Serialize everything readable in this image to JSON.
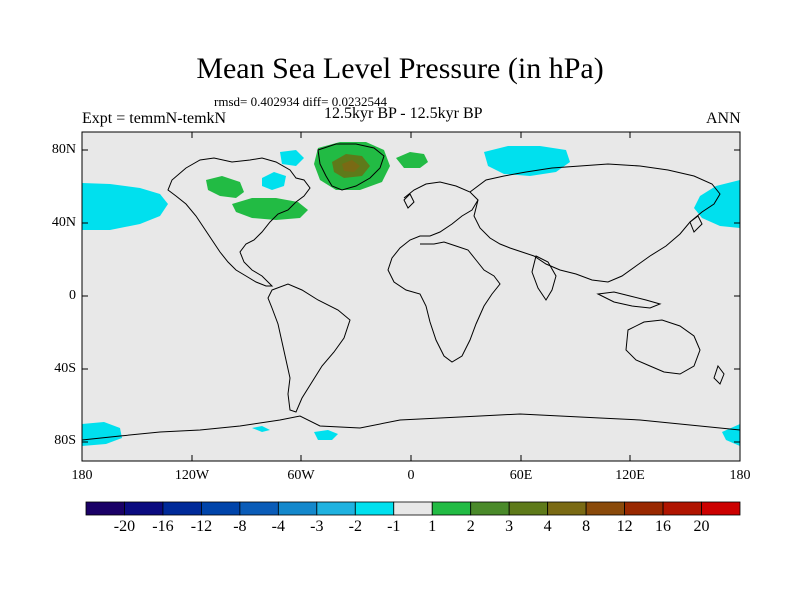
{
  "title": "Mean Sea Level Pressure (in hPa)",
  "stats_line": "rmsd= 0.402934 diff= 0.0232544",
  "experiment": "Expt = temmN-temkN",
  "period": "12.5kyr BP - 12.5kyr BP",
  "season": "ANN",
  "map": {
    "lat_ticks": [
      "80N",
      "40N",
      "0",
      "40S",
      "80S"
    ],
    "lon_ticks": [
      "180",
      "120W",
      "60W",
      "0",
      "60E",
      "120E",
      "180"
    ],
    "background_color": "#e8e8e8",
    "coast_color": "#000000"
  },
  "colorbar": {
    "colors": [
      "#1a0066",
      "#0b0b80",
      "#002a99",
      "#0044aa",
      "#0a5cb8",
      "#1488cc",
      "#1fb2e0",
      "#00e0ee",
      "#e8e8e8",
      "#22bb44",
      "#4a8a2a",
      "#5e7a1a",
      "#7a6a14",
      "#8a4a0a",
      "#992800",
      "#b01400",
      "#cc0000"
    ],
    "labels": [
      "-20",
      "-16",
      "-12",
      "-8",
      "-4",
      "-3",
      "-2",
      "-1",
      "1",
      "2",
      "3",
      "4",
      "8",
      "12",
      "16",
      "20"
    ]
  }
}
